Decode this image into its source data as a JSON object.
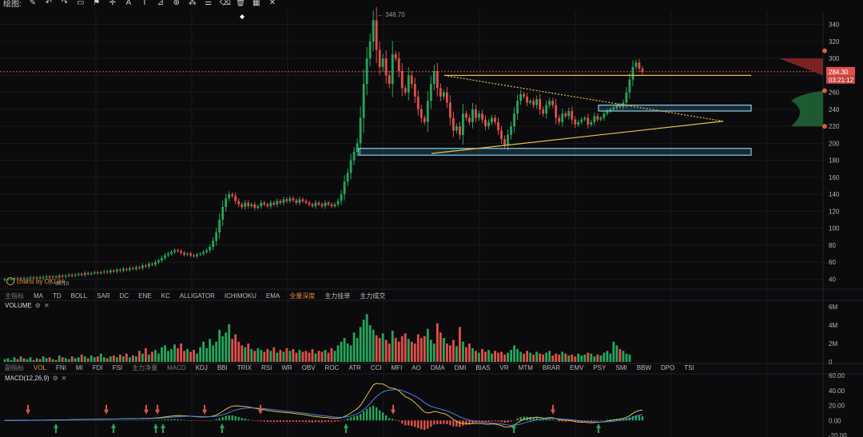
{
  "toolbar": {
    "label": "绘图:",
    "tools": [
      "pen-icon",
      "undo-icon",
      "redo-icon",
      "shape-icon",
      "flag-icon",
      "crosshair-icon",
      "text-icon",
      "brush-icon",
      "ruler-icon",
      "measure-icon",
      "grid-icon",
      "fib-icon",
      "delete-icon",
      "trash-icon",
      "table-icon",
      "close-icon"
    ]
  },
  "indicator_bar_top": {
    "items": [
      "主指标",
      "MA",
      "TD",
      "BOLL",
      "SAR",
      "DC",
      "ENE",
      "KC",
      "ALLIGATOR",
      "ICHIMOKU",
      "EMA"
    ],
    "extra": [
      "全量深度",
      "主力挂单",
      "主力成交"
    ]
  },
  "indicator_bar_bottom": {
    "items": [
      "副指标",
      "VOL",
      "FNI",
      "MI",
      "FDI",
      "FSI",
      "主力净量",
      "MACD",
      "KDJ",
      "BBI",
      "TRIX",
      "RSI",
      "WR",
      "OBV",
      "ROC",
      "ATR",
      "CCI",
      "MFI",
      "AO",
      "DMA",
      "DMI",
      "BIAS",
      "VR",
      "MTM",
      "BRAR",
      "EMV",
      "PSY",
      "SMI",
      "BBW",
      "DPO",
      "TSI"
    ]
  },
  "volume_pane": {
    "title": "VOLUME",
    "ticks": [
      "6M",
      "4M",
      "2M",
      "0"
    ]
  },
  "macd_pane": {
    "title": "MACD(12,26,9)",
    "ticks": [
      "60.00",
      "40.00",
      "20.00",
      "0.00",
      "-20.00"
    ]
  },
  "watermark": "charts by OKLink",
  "price_axis": {
    "ticks": [
      "340",
      "320",
      "300",
      "280",
      "260",
      "240",
      "220",
      "200",
      "180",
      "160",
      "140",
      "120",
      "100",
      "80",
      "60",
      "40"
    ]
  },
  "price_labels": {
    "current": "284.30",
    "countdown": "03:21:12",
    "high_marker": "348.70",
    "low_marker": "38.10"
  },
  "colors": {
    "up": "#26a65b",
    "down": "#e0504a",
    "yellow": "#e6c04a",
    "box": "#7fd0ef",
    "bg": "#0b0b0d",
    "grid": "#1a1a1d",
    "accent": "#e09a3c"
  },
  "chart_data": [
    {
      "type": "candlestick",
      "title": "",
      "ylim": [
        30,
        350
      ],
      "y_ticks": [
        340,
        320,
        300,
        280,
        260,
        240,
        220,
        200,
        180,
        160,
        140,
        120,
        100,
        80,
        60,
        40
      ],
      "close": [
        40,
        40,
        40,
        41,
        40,
        41,
        40,
        41,
        42,
        41,
        42,
        41,
        42,
        43,
        42,
        43,
        42,
        44,
        43,
        44,
        45,
        44,
        45,
        46,
        45,
        47,
        46,
        47,
        48,
        47,
        48,
        49,
        48,
        50,
        49,
        51,
        50,
        52,
        51,
        53,
        52,
        54,
        53,
        56,
        55,
        58,
        57,
        60,
        62,
        65,
        68,
        70,
        72,
        74,
        73,
        71,
        69,
        70,
        68,
        67,
        69,
        70,
        72,
        74,
        78,
        85,
        95,
        110,
        125,
        135,
        140,
        138,
        132,
        128,
        125,
        130,
        126,
        128,
        124,
        126,
        130,
        128,
        126,
        130,
        128,
        132,
        130,
        134,
        132,
        135,
        133,
        130,
        134,
        132,
        130,
        128,
        126,
        130,
        128,
        126,
        130,
        128,
        126,
        128,
        132,
        140,
        155,
        165,
        180,
        190,
        200,
        230,
        270,
        300,
        320,
        345,
        310,
        290,
        300,
        280,
        270,
        305,
        300,
        285,
        265,
        260,
        280,
        270,
        255,
        240,
        230,
        225,
        250,
        270,
        285,
        265,
        255,
        260,
        248,
        230,
        215,
        220,
        210,
        235,
        230,
        225,
        240,
        230,
        235,
        228,
        220,
        225,
        230,
        225,
        215,
        205,
        198,
        210,
        220,
        235,
        250,
        258,
        255,
        248,
        250,
        245,
        252,
        240,
        235,
        245,
        250,
        245,
        230,
        225,
        235,
        232,
        238,
        228,
        222,
        225,
        228,
        230,
        222,
        225,
        232,
        228,
        230,
        235,
        238,
        240,
        242,
        245,
        243,
        248,
        260,
        275,
        290,
        295,
        288,
        284
      ],
      "open": [
        39,
        40,
        40,
        40,
        41,
        40,
        41,
        40,
        41,
        42,
        41,
        42,
        41,
        42,
        43,
        42,
        43,
        42,
        44,
        43,
        44,
        45,
        44,
        45,
        46,
        45,
        47,
        46,
        47,
        48,
        47,
        48,
        49,
        48,
        50,
        49,
        51,
        50,
        52,
        51,
        53,
        52,
        54,
        53,
        56,
        55,
        58,
        57,
        60,
        62,
        65,
        68,
        70,
        72,
        74,
        73,
        71,
        69,
        70,
        68,
        67,
        69,
        70,
        72,
        74,
        78,
        85,
        95,
        110,
        125,
        135,
        140,
        138,
        132,
        128,
        125,
        130,
        126,
        128,
        124,
        126,
        130,
        128,
        126,
        130,
        128,
        132,
        130,
        134,
        132,
        135,
        133,
        130,
        134,
        132,
        130,
        128,
        126,
        130,
        128,
        126,
        130,
        128,
        126,
        128,
        132,
        140,
        155,
        165,
        180,
        190,
        200,
        230,
        270,
        300,
        320,
        345,
        310,
        290,
        300,
        280,
        270,
        305,
        300,
        285,
        265,
        260,
        280,
        270,
        255,
        240,
        230,
        225,
        250,
        270,
        285,
        265,
        255,
        260,
        248,
        230,
        215,
        220,
        210,
        235,
        230,
        225,
        240,
        230,
        235,
        228,
        220,
        225,
        230,
        225,
        215,
        205,
        198,
        210,
        220,
        235,
        250,
        258,
        255,
        248,
        250,
        245,
        252,
        240,
        235,
        245,
        250,
        245,
        230,
        225,
        235,
        232,
        238,
        228,
        222,
        225,
        228,
        230,
        222,
        225,
        232,
        228,
        230,
        235,
        238,
        240,
        242,
        245,
        243,
        248,
        260,
        275,
        290,
        295,
        288
      ]
    },
    {
      "type": "bar",
      "title": "VOLUME",
      "ylim": [
        0,
        6
      ],
      "y_unit": "M",
      "values": [
        0.3,
        0.4,
        0.2,
        0.5,
        0.3,
        0.6,
        0.4,
        0.3,
        0.5,
        0.2,
        0.4,
        0.3,
        0.6,
        0.4,
        0.5,
        0.3,
        0.2,
        0.7,
        0.5,
        0.4,
        0.3,
        0.6,
        0.4,
        0.5,
        0.8,
        0.6,
        0.4,
        0.7,
        0.5,
        0.6,
        0.9,
        0.5,
        0.4,
        0.6,
        0.7,
        0.5,
        0.8,
        0.6,
        0.9,
        0.5,
        0.7,
        0.6,
        1.2,
        0.9,
        1.5,
        0.8,
        1.1,
        1.3,
        0.9,
        1.6,
        1.8,
        1.2,
        1.4,
        1.9,
        1.5,
        2.0,
        1.2,
        1.4,
        1.1,
        1.3,
        0.9,
        1.6,
        2.2,
        1.5,
        2.5,
        1.8,
        2.2,
        3.5,
        2.8,
        3.2,
        4.1,
        2.5,
        3.0,
        2.2,
        1.8,
        1.6,
        2.0,
        1.4,
        1.2,
        1.5,
        1.3,
        1.1,
        1.4,
        1.2,
        1.6,
        1.0,
        1.3,
        1.1,
        1.5,
        1.2,
        1.4,
        1.0,
        1.3,
        1.1,
        1.2,
        1.0,
        1.4,
        0.9,
        1.2,
        1.1,
        1.3,
        1.0,
        1.5,
        1.2,
        1.8,
        2.2,
        2.6,
        2.0,
        1.8,
        3.2,
        2.6,
        3.8,
        4.6,
        5.2,
        4.0,
        3.5,
        2.9,
        2.6,
        3.1,
        2.4,
        2.0,
        3.4,
        2.6,
        2.2,
        2.8,
        3.1,
        2.5,
        2.2,
        2.0,
        3.0,
        2.6,
        2.8,
        3.6,
        2.4,
        2.0,
        4.2,
        3.2,
        2.6,
        2.0,
        1.8,
        2.4,
        1.7,
        3.8,
        2.2,
        1.6,
        2.0,
        1.5,
        1.2,
        1.0,
        1.4,
        1.1,
        1.3,
        0.9,
        1.2,
        1.0,
        1.1,
        0.8,
        1.0,
        1.3,
        1.8,
        1.4,
        1.1,
        0.9,
        1.2,
        1.0,
        0.8,
        1.1,
        0.9,
        0.8,
        1.0,
        1.2,
        0.7,
        0.9,
        0.8,
        1.1,
        0.9,
        0.7,
        0.8,
        0.6,
        0.9,
        0.7,
        0.8,
        1.0,
        0.9,
        0.6,
        0.8,
        0.7,
        1.0,
        1.2,
        0.9,
        2.2,
        1.8,
        1.4,
        1.2,
        0.9,
        0.8
      ]
    },
    {
      "type": "line",
      "title": "MACD(12,26,9)",
      "ylim": [
        -20,
        60
      ],
      "y_ticks": [
        60,
        40,
        20,
        0,
        -20
      ]
    }
  ]
}
